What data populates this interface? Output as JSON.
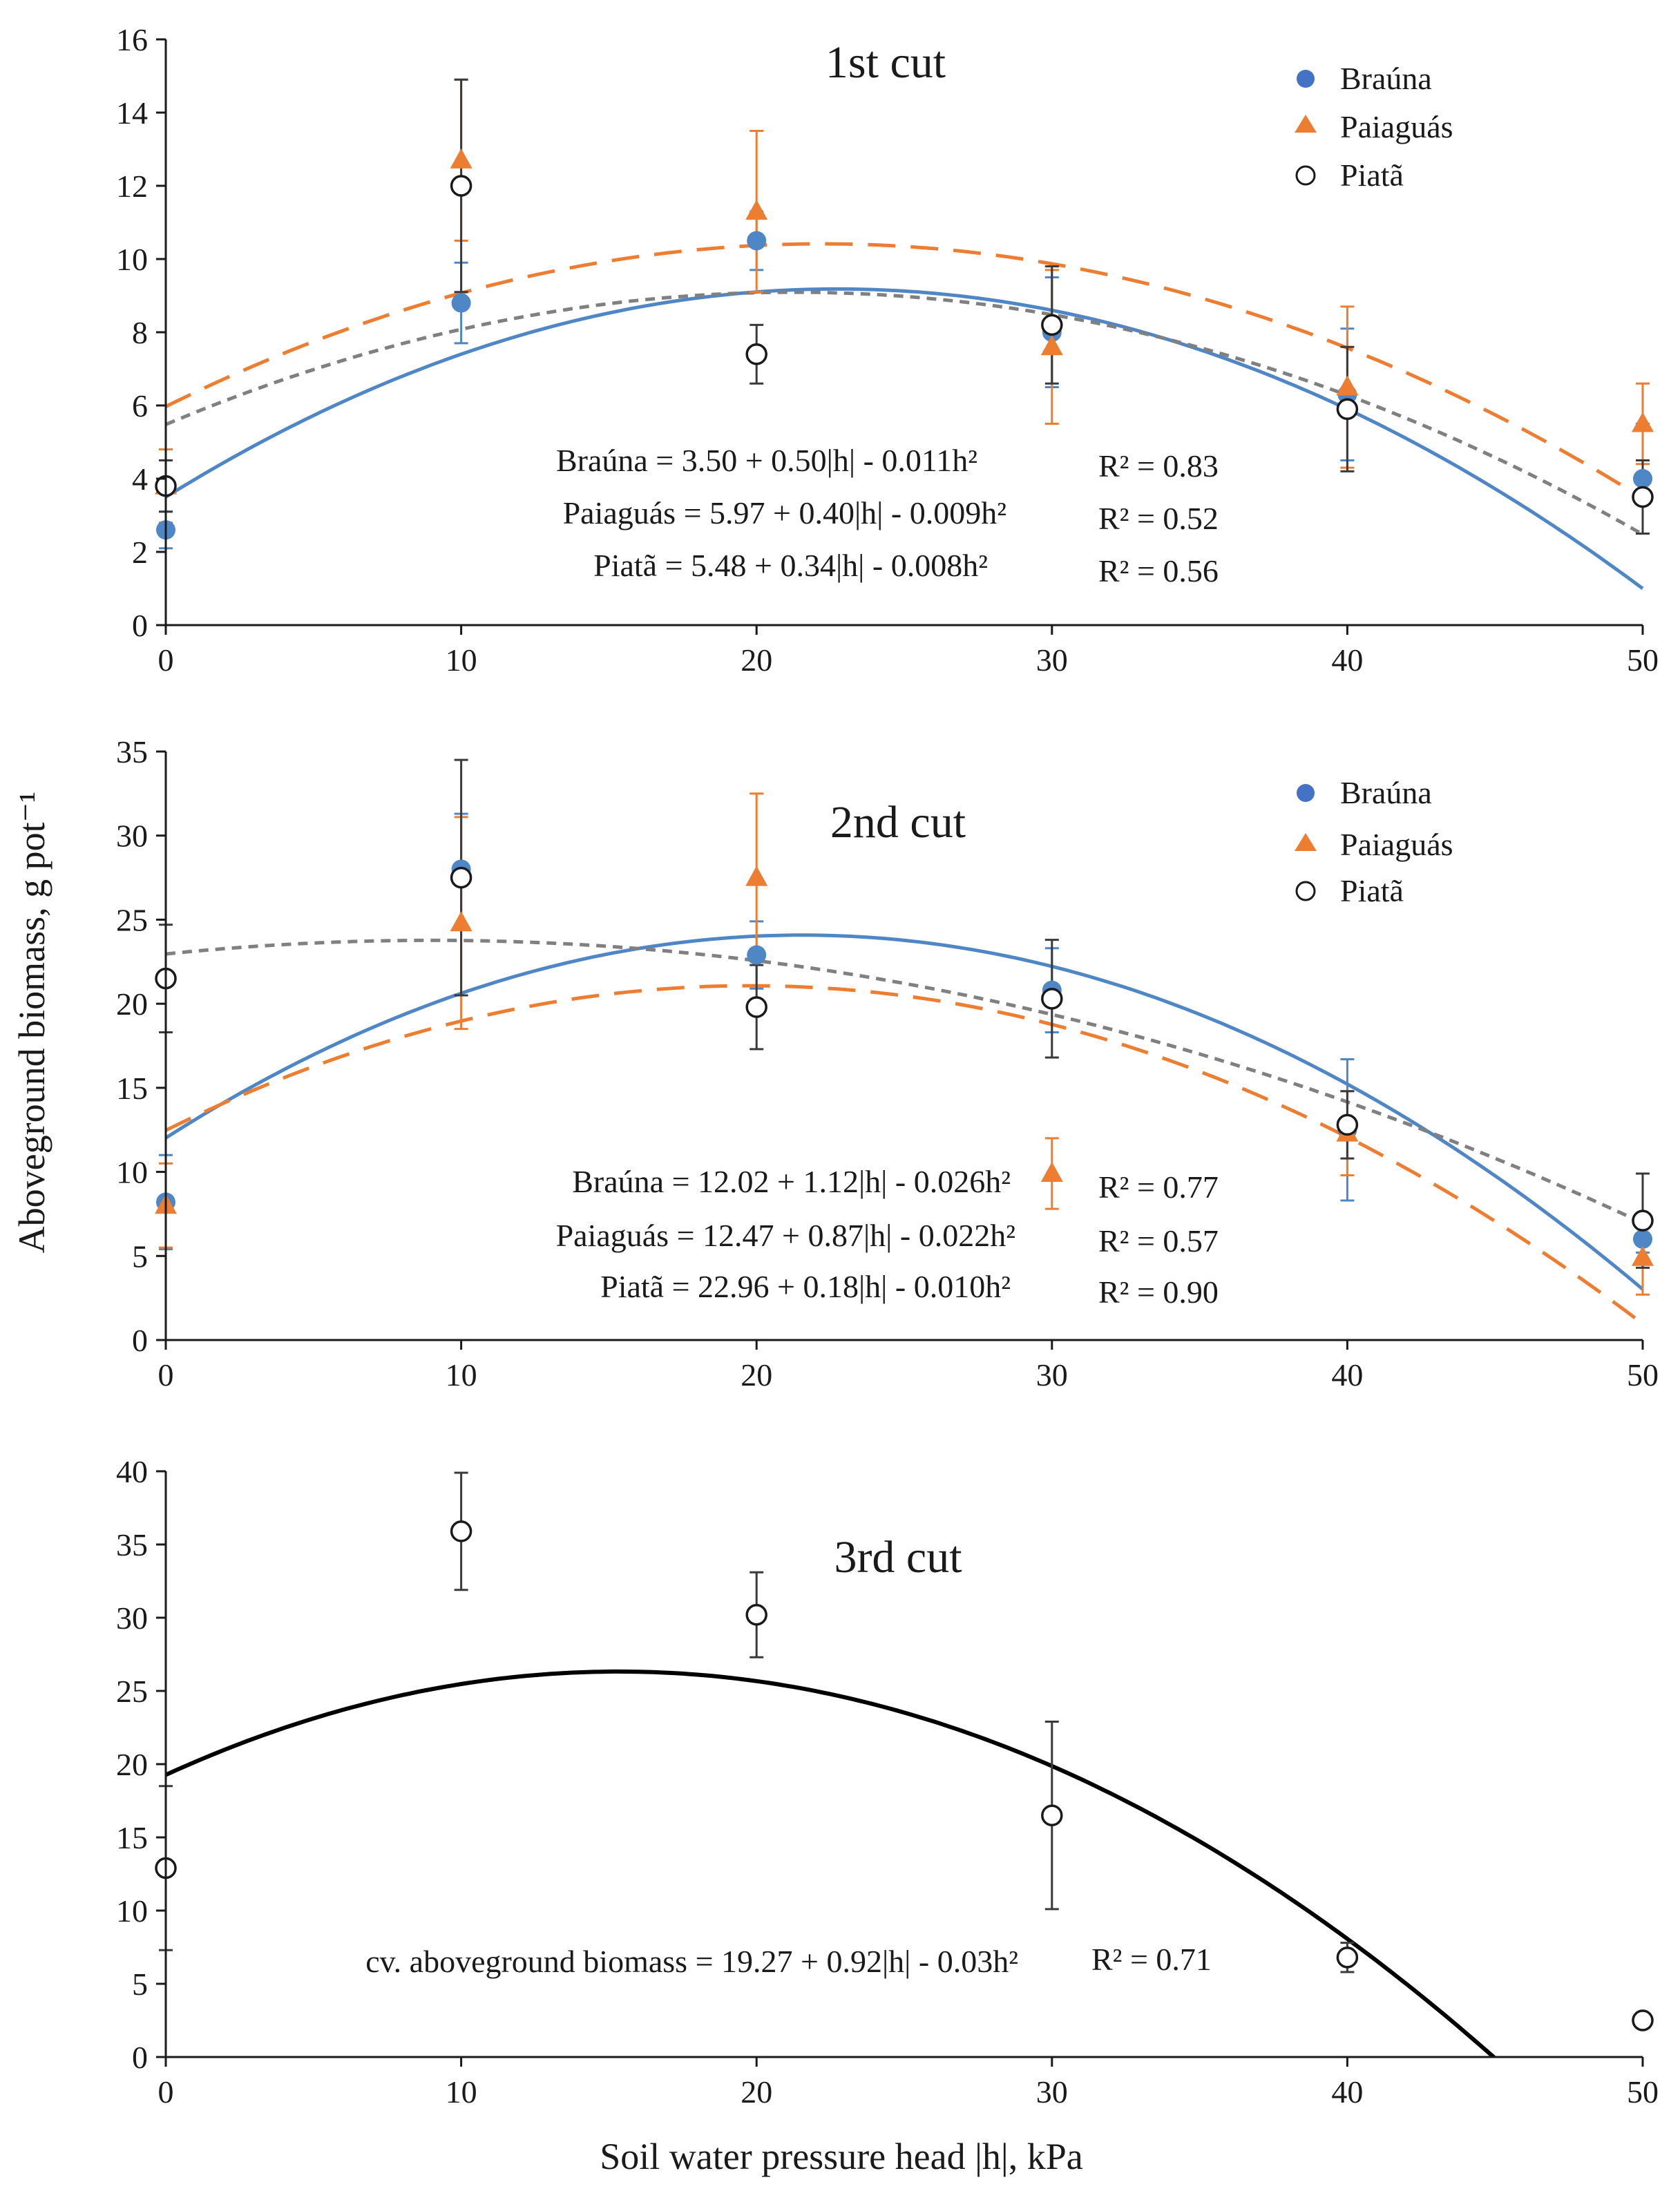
{
  "x_axis_title": "Soil water pressure head |h|, kPa",
  "y_axis_title": "Aboveground biomass, g pot⁻¹",
  "colors": {
    "brauna": "#4f86c6",
    "brauna_point": "#4472c4",
    "paiaguas": "#ed7d31",
    "piata": "#808080",
    "axis": "#1a1a1a",
    "fit3": "#000000"
  },
  "chart_data": [
    {
      "type": "scatter",
      "title": "1st cut",
      "xlabel": "Soil water pressure head |h|, kPa",
      "ylabel": "Aboveground biomass, g pot⁻¹",
      "xlim": [
        0,
        50
      ],
      "ylim": [
        0,
        16
      ],
      "xticks": [
        "0",
        "10",
        "20",
        "30",
        "40",
        "50"
      ],
      "yticks": [
        "0",
        "2",
        "4",
        "6",
        "8",
        "10",
        "12",
        "14",
        "16"
      ],
      "legend": [
        "Braúna",
        "Paiaguás",
        "Piatã"
      ],
      "legend_position": "top-right",
      "series": [
        {
          "name": "Braúna",
          "marker": "circle-filled",
          "x": [
            0,
            10,
            20,
            30,
            40,
            50
          ],
          "values": [
            2.6,
            8.8,
            10.5,
            8.0,
            6.3,
            4.0
          ],
          "err": [
            0.5,
            1.1,
            0.8,
            1.5,
            1.8,
            1.5
          ],
          "fit": [
            3.5,
            0.5,
            -0.011
          ],
          "equation": "Braúna = 3.50 + 0.50|h| - 0.011h²",
          "r2": "R² = 0.83"
        },
        {
          "name": "Paiaguás",
          "marker": "triangle",
          "x": [
            0,
            10,
            20,
            30,
            40,
            50
          ],
          "values": [
            3.8,
            12.7,
            11.3,
            7.6,
            6.5,
            5.5
          ],
          "err": [
            1.0,
            2.2,
            2.2,
            2.1,
            2.2,
            1.1
          ],
          "fit": [
            5.97,
            0.4,
            -0.009
          ],
          "equation": "Paiaguás = 5.97 + 0.40|h| - 0.009h²",
          "r2": "R² = 0.52"
        },
        {
          "name": "Piatã",
          "marker": "circle-open",
          "x": [
            0,
            10,
            20,
            30,
            40,
            50
          ],
          "values": [
            3.8,
            12.0,
            7.4,
            8.2,
            5.9,
            3.5
          ],
          "err": [
            0.7,
            2.9,
            0.8,
            1.6,
            1.7,
            1.0
          ],
          "fit": [
            5.48,
            0.34,
            -0.008
          ],
          "equation": "Piatã = 5.48 + 0.34|h| - 0.008h²",
          "r2": "R² = 0.56"
        }
      ]
    },
    {
      "type": "scatter",
      "title": "2nd cut",
      "xlabel": "Soil water pressure head |h|, kPa",
      "ylabel": "Aboveground biomass, g pot⁻¹",
      "xlim": [
        0,
        50
      ],
      "ylim": [
        0,
        35
      ],
      "xticks": [
        "0",
        "10",
        "20",
        "30",
        "40",
        "50"
      ],
      "yticks": [
        "0",
        "5",
        "10",
        "15",
        "20",
        "25",
        "30",
        "35"
      ],
      "legend": [
        "Braúna",
        "Paiaguás",
        "Piatã"
      ],
      "legend_position": "top-right",
      "series": [
        {
          "name": "Braúna",
          "marker": "circle-filled",
          "x": [
            0,
            10,
            20,
            30,
            40,
            50
          ],
          "values": [
            8.2,
            28.0,
            22.9,
            20.8,
            12.5,
            6.0
          ],
          "err": [
            2.8,
            3.3,
            2.0,
            2.5,
            4.2,
            0.8
          ],
          "fit": [
            12.02,
            1.12,
            -0.026
          ],
          "equation": "Braúna = 12.02 + 1.12|h| - 0.026h²",
          "r2": "R² = 0.77"
        },
        {
          "name": "Paiaguás",
          "marker": "triangle",
          "x": [
            0,
            10,
            20,
            30,
            40,
            50
          ],
          "values": [
            8.0,
            24.8,
            27.5,
            9.9,
            12.3,
            4.9
          ],
          "err": [
            2.5,
            6.3,
            5.0,
            2.1,
            2.5,
            2.2
          ],
          "fit": [
            12.47,
            0.87,
            -0.022
          ],
          "equation": "Paiaguás = 12.47 + 0.87|h| - 0.022h²",
          "r2": "R² = 0.57"
        },
        {
          "name": "Piatã",
          "marker": "circle-open",
          "x": [
            0,
            10,
            20,
            30,
            40,
            50
          ],
          "values": [
            21.5,
            27.5,
            19.8,
            20.3,
            12.8,
            7.1
          ],
          "err": [
            3.2,
            7.0,
            2.5,
            3.5,
            2.0,
            2.8
          ],
          "fit": [
            22.96,
            0.18,
            -0.01
          ],
          "equation": "Piatã = 22.96 + 0.18|h| - 0.010h²",
          "r2": "R² = 0.90"
        }
      ]
    },
    {
      "type": "scatter",
      "title": "3rd cut",
      "xlabel": "Soil water pressure head |h|, kPa",
      "ylabel": "Aboveground biomass, g pot⁻¹",
      "xlim": [
        0,
        50
      ],
      "ylim": [
        0,
        40
      ],
      "xticks": [
        "0",
        "10",
        "20",
        "30",
        "40",
        "50"
      ],
      "yticks": [
        "0",
        "5",
        "10",
        "15",
        "20",
        "25",
        "30",
        "35",
        "40"
      ],
      "series": [
        {
          "name": "cv. aboveground biomass",
          "marker": "circle-open",
          "x": [
            0,
            10,
            20,
            30,
            40,
            50
          ],
          "values": [
            12.9,
            35.9,
            30.2,
            16.5,
            6.8,
            2.5
          ],
          "err": [
            5.6,
            4.0,
            2.9,
            6.4,
            1.0,
            0.5
          ],
          "fit": [
            19.27,
            0.92,
            -0.03
          ],
          "equation": "cv. aboveground biomass = 19.27 + 0.92|h| - 0.03h²",
          "r2": "R² = 0.71"
        }
      ]
    }
  ]
}
